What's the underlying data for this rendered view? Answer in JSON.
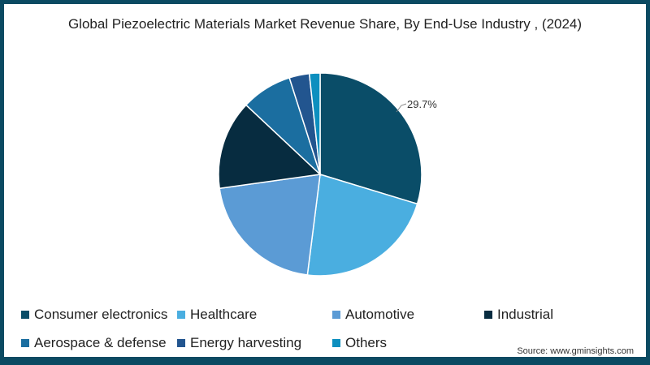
{
  "chart_data": {
    "type": "pie",
    "title": "Global Piezoelectric Materials Market Revenue Share, By End-Use Industry , (2024)",
    "categories": [
      "Consumer electronics",
      "Healthcare",
      "Automotive",
      "Industrial",
      "Aerospace & defense",
      "Energy harvesting",
      "Others"
    ],
    "values": [
      29.7,
      22.3,
      20.8,
      14.2,
      8.1,
      3.2,
      1.7
    ],
    "colors": [
      "#0a4d68",
      "#4aaee0",
      "#5b9bd5",
      "#072c40",
      "#1b6ea0",
      "#22558f",
      "#0d8fbf"
    ],
    "annotations": [
      {
        "label": "29.7%",
        "category": "Consumer electronics"
      }
    ],
    "legend_position": "bottom",
    "source": "Source: www.gminsights.com"
  },
  "title": "Global Piezoelectric Materials Market Revenue Share, By End-Use Industry , (2024)",
  "data_label": "29.7%",
  "legend": [
    {
      "label": "Consumer electronics",
      "color": "#0a4d68"
    },
    {
      "label": "Healthcare",
      "color": "#4aaee0"
    },
    {
      "label": "Automotive",
      "color": "#5b9bd5"
    },
    {
      "label": "Industrial",
      "color": "#072c40"
    },
    {
      "label": "Aerospace & defense",
      "color": "#1b6ea0"
    },
    {
      "label": "Energy harvesting",
      "color": "#22558f"
    },
    {
      "label": "Others",
      "color": "#0d8fbf"
    }
  ],
  "source": "Source: www.gminsights.com"
}
